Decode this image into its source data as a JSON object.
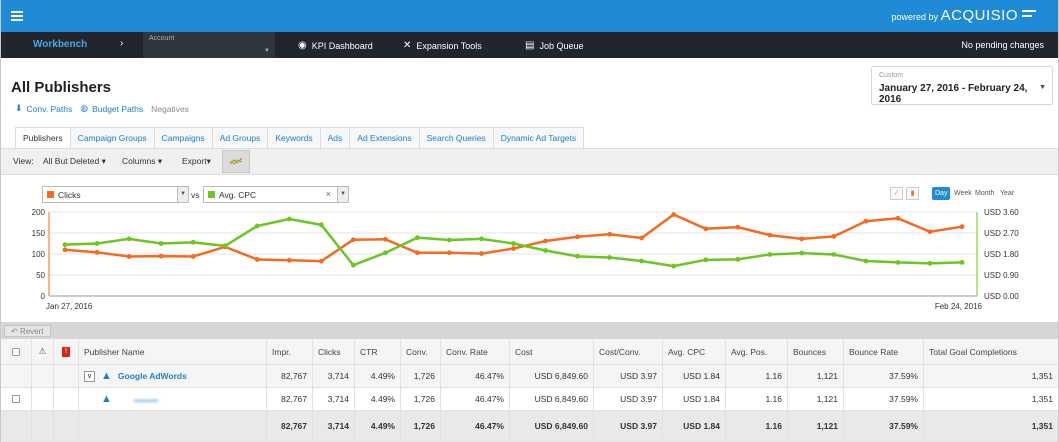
{
  "topbar": {
    "powered_by": "powered by",
    "brand": "ACQUISIO"
  },
  "navbar": {
    "workbench": "Workbench",
    "account_label": "Account",
    "kpi_dashboard": "KPI Dashboard",
    "expansion_tools": "Expansion Tools",
    "job_queue": "Job Queue",
    "status": "No pending changes"
  },
  "page": {
    "title": "All Publishers",
    "links": {
      "conv_paths": "Conv. Paths",
      "budget_paths": "Budget Paths",
      "negatives": "Negatives"
    }
  },
  "date_range": {
    "label": "Custom",
    "value": "January 27, 2016 - February 24, 2016"
  },
  "tabs": [
    "Publishers",
    "Campaign Groups",
    "Campaigns",
    "Ad Groups",
    "Keywords",
    "Ads",
    "Ad Extensions",
    "Search Queries",
    "Dynamic Ad Targets"
  ],
  "toolbar": {
    "view_label": "View:",
    "view_value": "All But Deleted",
    "columns": "Columns",
    "export": "Export"
  },
  "chart_controls": {
    "metric1": "Clicks",
    "vs": "vs",
    "metric2": "Avg. CPC",
    "periods": [
      "Day",
      "Week",
      "Month",
      "Year"
    ],
    "active_period": "Day"
  },
  "chart_data": {
    "type": "line",
    "x_start_label": "Jan 27, 2016",
    "x_end_label": "Feb 24, 2016",
    "left_axis": {
      "ticks": [
        "200",
        "150",
        "100",
        "50",
        "0"
      ],
      "ylim": [
        0,
        200
      ]
    },
    "right_axis": {
      "ticks": [
        "USD 3.60",
        "USD 2.70",
        "USD 1.80",
        "USD 0.90",
        "USD 0.00"
      ],
      "ylim": [
        0,
        3.6
      ]
    },
    "colors": {
      "clicks": "#f26b21",
      "cpc": "#6cc523",
      "axis_left": "#f26b21",
      "axis_right": "#6cc523"
    },
    "series": [
      {
        "name": "Clicks",
        "axis": "left",
        "values": [
          110,
          104,
          94,
          95,
          94,
          117,
          87,
          85,
          83,
          134,
          135,
          103,
          103,
          101,
          113,
          131,
          141,
          147,
          138,
          194,
          160,
          164,
          145,
          136,
          142,
          178,
          185,
          153,
          165
        ]
      },
      {
        "name": "Avg. CPC",
        "axis": "right",
        "values": [
          2.2,
          2.25,
          2.45,
          2.25,
          2.3,
          2.15,
          3.0,
          3.3,
          3.05,
          1.32,
          1.85,
          2.5,
          2.4,
          2.45,
          2.25,
          1.95,
          1.7,
          1.65,
          1.5,
          1.28,
          1.55,
          1.57,
          1.78,
          1.84,
          1.78,
          1.5,
          1.44,
          1.4,
          1.44
        ]
      }
    ]
  },
  "revert": "Revert",
  "table": {
    "headers": [
      "Publisher Name",
      "Impr.",
      "Clicks",
      "CTR",
      "Conv.",
      "Conv. Rate",
      "Cost",
      "Cost/Conv.",
      "Avg. CPC",
      "Avg. Pos.",
      "Bounces",
      "Bounce Rate",
      "Total Goal Completions"
    ],
    "row1": {
      "name": "Google AdWords",
      "impr": "82,767",
      "clicks": "3,714",
      "ctr": "4.49%",
      "conv": "1,726",
      "conv_rate": "46.47%",
      "cost": "USD 6,849.60",
      "cost_conv": "USD 3.97",
      "avg_cpc": "USD 1.84",
      "avg_pos": "1.16",
      "bounces": "1,121",
      "bounce_rate": "37.59%",
      "total_goal": "1,351"
    },
    "row2": {
      "name": "",
      "impr": "82,767",
      "clicks": "3,714",
      "ctr": "4.49%",
      "conv": "1,726",
      "conv_rate": "46.47%",
      "cost": "USD 6,849.60",
      "cost_conv": "USD 3.97",
      "avg_cpc": "USD 1.84",
      "avg_pos": "1.16",
      "bounces": "1,121",
      "bounce_rate": "37.59%",
      "total_goal": "1,351"
    },
    "total": {
      "impr": "82,767",
      "clicks": "3,714",
      "ctr": "4.49%",
      "conv": "1,726",
      "conv_rate": "46.47%",
      "cost": "USD 6,849.60",
      "cost_conv": "USD 3.97",
      "avg_cpc": "USD 1.84",
      "avg_pos": "1.16",
      "bounces": "1,121",
      "bounce_rate": "37.59%",
      "total_goal": "1,351"
    }
  }
}
